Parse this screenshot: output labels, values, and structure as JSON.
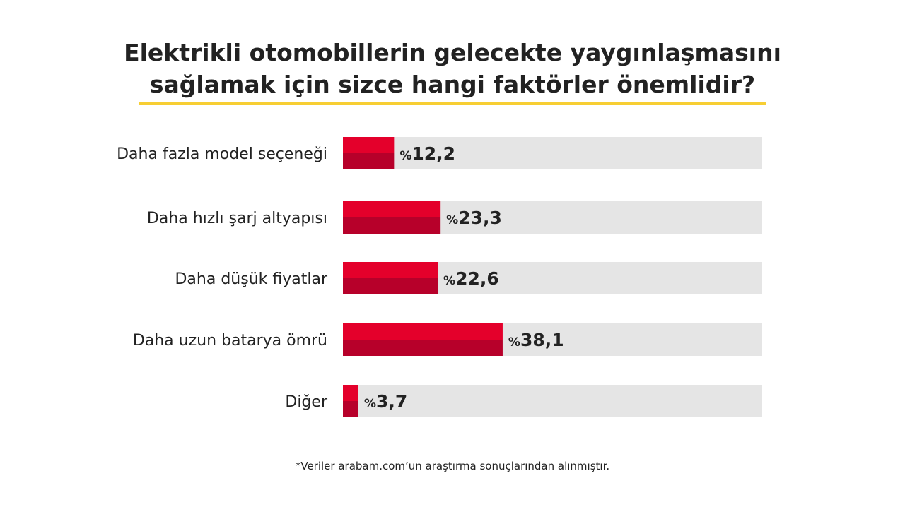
{
  "title": {
    "line1": "Elektrikli otomobillerin gelecekte yaygınlaşmasını",
    "line2": "sağlamak için sizce hangi faktörler önemlidir?"
  },
  "colors": {
    "bar_top": "#e4002b",
    "bar_bottom": "#b7002a",
    "track": "#e5e5e5",
    "underline": "#f7ce33",
    "text": "#222222"
  },
  "chart_data": {
    "type": "bar",
    "orientation": "horizontal",
    "categories": [
      "Daha fazla model seçeneği",
      "Daha hızlı şarj altyapısı",
      "Daha düşük fiyatlar",
      "Daha uzun batarya ömrü",
      "Diğer"
    ],
    "values": [
      12.2,
      23.3,
      22.6,
      38.1,
      3.7
    ],
    "value_labels": [
      "12,2",
      "23,3",
      "22,6",
      "38,1",
      "3,7"
    ],
    "value_prefix": "%",
    "xlim": [
      0,
      100
    ],
    "grid": false,
    "legend": "none"
  },
  "footnote": "*Veriler arabam.com’un araştırma sonuçlarından alınmıştır."
}
